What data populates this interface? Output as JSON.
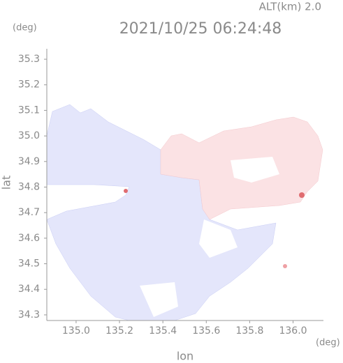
{
  "chart_data": {
    "type": "map",
    "title": "2021/10/25 06:24:48",
    "annotation": "ALT(km) 2.0",
    "y_unit": "(deg)",
    "x_unit": "(deg)",
    "xlabel": "lon",
    "ylabel": "lat",
    "xlim": [
      134.865,
      136.14
    ],
    "ylim": [
      34.278,
      35.341
    ],
    "xticks": [
      {
        "value": 135,
        "label": "135.0"
      },
      135.2,
      135.4,
      135.6,
      135.8,
      {
        "value": 136,
        "label": "136.0"
      }
    ],
    "yticks": [
      35.3,
      35.2,
      35.1,
      {
        "value": 35,
        "label": "35.0"
      },
      34.9,
      34.8,
      34.7,
      34.6,
      34.5,
      34.4,
      34.3
    ]
  }
}
